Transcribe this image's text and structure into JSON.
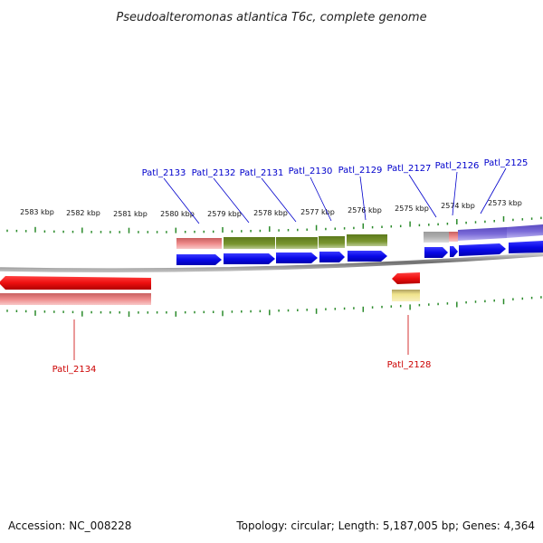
{
  "title": "Pseudoalteromonas atlantica T6c, complete genome",
  "footer": {
    "accession": "Accession: NC_008228",
    "summary": "Topology: circular; Length: 5,187,005 bp; Genes: 4,364"
  },
  "colors": {
    "forward_cds": "#0a0af0",
    "reverse_cds": "#ee1111",
    "forward_gene_olive": "#6f8a28",
    "forward_gene_pink": "#e57f7f",
    "forward_gene_purple": "#6f60d0",
    "forward_gene_grey": "#aaaaaa",
    "reverse_gene_pink": "#ee8f8f",
    "reverse_gene_yellow": "#f0e48c",
    "label_forward": "#0000cc",
    "label_reverse": "#cc0000",
    "ticks": "#2a8a2a",
    "backbone": "#8a8a8a"
  },
  "kbp_labels": [
    "2583 kbp",
    "2582 kbp",
    "2581 kbp",
    "2580 kbp",
    "2579 kbp",
    "2578 kbp",
    "2577 kbp",
    "2576 kbp",
    "2575 kbp",
    "2574 kbp",
    "2573 kbp"
  ],
  "genes_forward": [
    "Patl_2133",
    "Patl_2132",
    "Patl_2131",
    "Patl_2130",
    "Patl_2129",
    "Patl_2127",
    "Patl_2126",
    "Patl_2125"
  ],
  "genes_reverse": [
    "Patl_2134",
    "Patl_2128"
  ]
}
